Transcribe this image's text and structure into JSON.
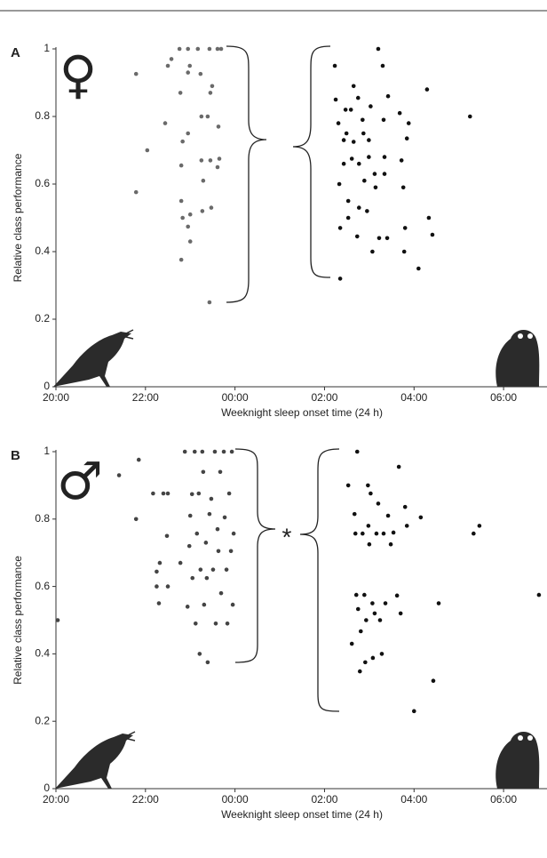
{
  "chart_data": [
    {
      "type": "scatter",
      "panel_label": "A",
      "symbol": "♀",
      "xlabel": "Weeknight sleep onset time (24 h)",
      "ylabel": "Relative class performance",
      "xlim": [
        20,
        30.97
      ],
      "ylim": [
        0,
        1
      ],
      "xticks": [
        {
          "value": 20,
          "label": "20:00"
        },
        {
          "value": 22,
          "label": "22:00"
        },
        {
          "value": 24,
          "label": "00:00"
        },
        {
          "value": 26,
          "label": "02:00"
        },
        {
          "value": 28,
          "label": "04:00"
        },
        {
          "value": 30,
          "label": "06:00"
        }
      ],
      "yticks": [
        0,
        0.2,
        0.4,
        0.6,
        0.8,
        1
      ],
      "series": [
        {
          "color": "#6a6a6a",
          "x": [
            21.79,
            21.79,
            22.04,
            22.44,
            22.5,
            22.58,
            22.76,
            22.78,
            22.8,
            22.8,
            22.8,
            22.83,
            22.83,
            22.95,
            22.95,
            22.95,
            22.95,
            22.99,
            23.0,
            23.0,
            23.17,
            23.23,
            23.25,
            23.25,
            23.27,
            23.29,
            23.39,
            23.43,
            23.43,
            23.45,
            23.45,
            23.47,
            23.49,
            23.61,
            23.63,
            23.61,
            23.65,
            23.69
          ],
          "values": [
            0.926,
            0.576,
            0.7,
            0.78,
            0.95,
            0.97,
            1.0,
            0.87,
            0.376,
            0.655,
            0.55,
            0.5,
            0.726,
            1.0,
            0.93,
            0.75,
            0.474,
            0.95,
            0.43,
            0.51,
            1.0,
            0.926,
            0.8,
            0.67,
            0.52,
            0.61,
            0.8,
            1.0,
            0.25,
            0.87,
            0.67,
            0.53,
            0.89,
            1.0,
            0.77,
            0.65,
            0.675,
            1.0
          ]
        },
        {
          "color": "#111111",
          "x": [
            26.23,
            26.25,
            26.31,
            26.33,
            26.35,
            26.35,
            26.43,
            26.43,
            26.47,
            26.49,
            26.53,
            26.53,
            26.59,
            26.61,
            26.65,
            26.65,
            26.73,
            26.77,
            26.75,
            26.77,
            26.85,
            26.87,
            26.89,
            26.95,
            26.99,
            26.99,
            27.03,
            27.07,
            27.12,
            27.14,
            27.2,
            27.22,
            27.3,
            27.32,
            27.34,
            27.34,
            27.4,
            27.42,
            27.68,
            27.72,
            27.76,
            27.78,
            27.8,
            27.84,
            27.88,
            28.1,
            28.29,
            28.33,
            28.41,
            29.25
          ],
          "values": [
            0.95,
            0.85,
            0.78,
            0.6,
            0.47,
            0.32,
            0.73,
            0.66,
            0.82,
            0.75,
            0.55,
            0.5,
            0.82,
            0.675,
            0.725,
            0.89,
            0.445,
            0.53,
            0.855,
            0.66,
            0.79,
            0.75,
            0.61,
            0.52,
            0.73,
            0.68,
            0.83,
            0.4,
            0.63,
            0.59,
            1.0,
            0.44,
            0.95,
            0.79,
            0.68,
            0.63,
            0.44,
            0.86,
            0.81,
            0.67,
            0.59,
            0.4,
            0.47,
            0.735,
            0.78,
            0.35,
            0.88,
            0.5,
            0.45,
            0.8
          ]
        }
      ]
    },
    {
      "type": "scatter",
      "panel_label": "B",
      "symbol": "♂",
      "annotation": "*",
      "xlabel": "Weeknight sleep onset time (24 h)",
      "ylabel": "Relative class performance",
      "xlim": [
        20,
        30.97
      ],
      "ylim": [
        0,
        1
      ],
      "xticks": [
        {
          "value": 20,
          "label": "20:00"
        },
        {
          "value": 22,
          "label": "22:00"
        },
        {
          "value": 24,
          "label": "00:00"
        },
        {
          "value": 26,
          "label": "02:00"
        },
        {
          "value": 28,
          "label": "04:00"
        },
        {
          "value": 30,
          "label": "06:00"
        }
      ],
      "yticks": [
        0,
        0.2,
        0.4,
        0.6,
        0.8,
        1
      ],
      "series": [
        {
          "color": "#444444",
          "x": [
            20.04,
            21.41,
            21.85,
            21.79,
            22.17,
            22.25,
            22.25,
            22.3,
            22.32,
            22.4,
            22.48,
            22.5,
            22.5,
            22.78,
            22.88,
            22.94,
            23.0,
            22.98,
            23.04,
            23.05,
            23.1,
            23.12,
            23.15,
            23.19,
            23.21,
            23.23,
            23.27,
            23.29,
            23.31,
            23.35,
            23.37,
            23.39,
            23.43,
            23.47,
            23.51,
            23.55,
            23.57,
            23.61,
            23.63,
            23.67,
            23.69,
            23.75,
            23.77,
            23.81,
            23.83,
            23.87,
            23.91,
            23.93,
            23.95,
            23.97
          ],
          "values": [
            0.5,
            0.93,
            0.976,
            0.8,
            0.876,
            0.644,
            0.6,
            0.55,
            0.67,
            0.876,
            0.75,
            0.876,
            0.6,
            0.67,
            1.0,
            0.54,
            0.81,
            0.72,
            0.874,
            0.625,
            1.0,
            0.49,
            0.757,
            0.876,
            0.4,
            0.65,
            1.0,
            0.94,
            0.546,
            0.73,
            0.625,
            0.375,
            0.815,
            0.86,
            0.65,
            1.0,
            0.49,
            0.77,
            0.705,
            0.94,
            0.58,
            1.0,
            0.805,
            0.65,
            0.49,
            0.876,
            0.705,
            1.0,
            0.546,
            0.757
          ]
        },
        {
          "color": "#111111",
          "x": [
            26.53,
            26.61,
            26.67,
            26.69,
            26.71,
            26.73,
            26.75,
            26.79,
            26.81,
            26.85,
            26.89,
            26.91,
            26.93,
            26.97,
            26.98,
            27.0,
            27.03,
            27.07,
            27.08,
            27.12,
            27.16,
            27.2,
            27.24,
            27.28,
            27.32,
            27.36,
            27.42,
            27.48,
            27.54,
            27.62,
            27.66,
            27.7,
            27.8,
            27.84,
            28.0,
            28.15,
            28.43,
            28.55,
            29.33,
            29.46,
            30.79
          ],
          "values": [
            0.9,
            0.43,
            0.815,
            0.757,
            0.575,
            1.0,
            0.533,
            0.348,
            0.467,
            0.757,
            0.575,
            0.375,
            0.5,
            0.9,
            0.78,
            0.725,
            0.876,
            0.55,
            0.388,
            0.52,
            0.757,
            0.846,
            0.5,
            0.4,
            0.757,
            0.55,
            0.81,
            0.725,
            0.76,
            0.573,
            0.955,
            0.52,
            0.836,
            0.78,
            0.23,
            0.805,
            0.32,
            0.55,
            0.757,
            0.78,
            0.575
          ]
        }
      ]
    }
  ]
}
